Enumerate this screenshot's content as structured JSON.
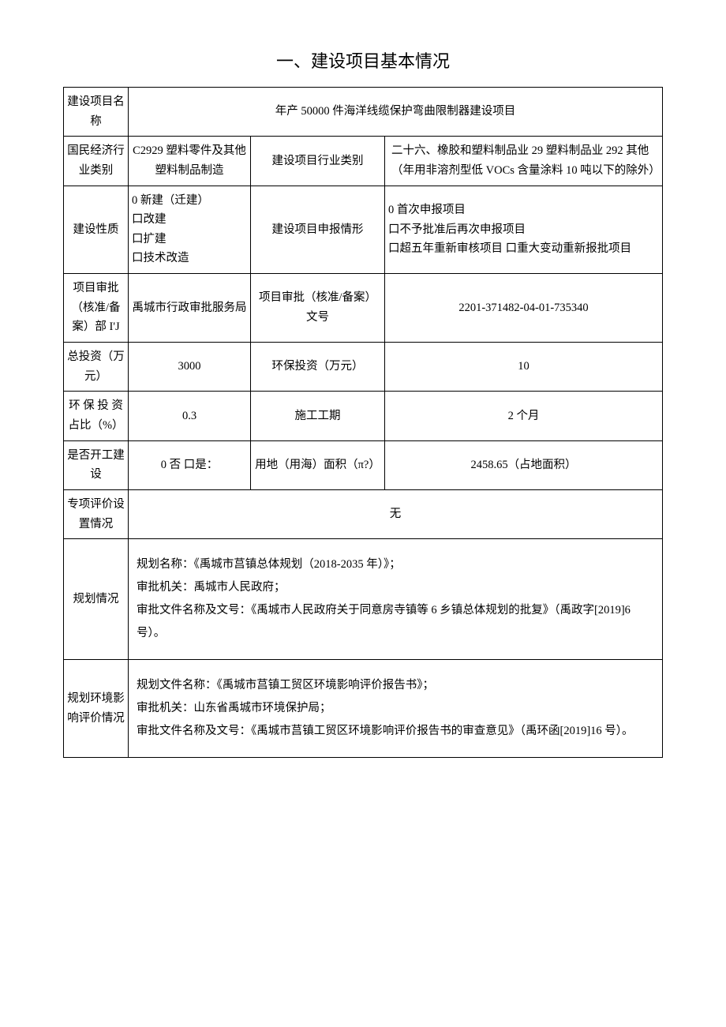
{
  "title": "一、建设项目基本情况",
  "rows": {
    "project_name_label": "建设项目名称",
    "project_name_value": "年产 50000 件海洋线缆保护弯曲限制器建设项目",
    "econ_category_label": "国民经济行业类别",
    "econ_category_value": "C2929 塑料零件及其他塑料制品制造",
    "project_industry_label": "建设项目行业类别",
    "project_industry_value": "二十六、橡胶和塑料制品业 29 塑料制品业 292 其他（年用非溶剂型低 VOCs 含量涂料 10 吨以下的除外）",
    "build_nature_label": "建设性质",
    "build_nature_value": "0 新建（迁建）\n口改建\n口扩建\n口技术改造",
    "report_situation_label": "建设项目申报情形",
    "report_situation_value": "0 首次申报项目\n口不予批准后再次申报项目\n口超五年重新审核项目 口重大变动重新报批项目",
    "approval_dept_label": "项目审批（核准/备案）部 I'J",
    "approval_dept_value": "禹城市行政审批服务局",
    "approval_no_label": "项目审批（核准/备案）文号",
    "approval_no_value": "2201-371482-04-01-735340",
    "total_invest_label": "总投资（万元）",
    "total_invest_value": "3000",
    "env_invest_label": "环保投资（万元）",
    "env_invest_value": "10",
    "env_ratio_label": "环 保 投 资占比（%）",
    "env_ratio_value": "0.3",
    "construction_period_label": "施工工期",
    "construction_period_value": "2 个月",
    "started_label": "是否开工建设",
    "started_value": "0 否 口是：",
    "land_area_label": "用地（用海）面积（π?）",
    "land_area_value": "2458.65（占地面积）",
    "special_eval_label": "专项评价设置情况",
    "special_eval_value": "无",
    "planning_label": "规划情况",
    "planning_value": "规划名称：《禹城市莒镇总体规划（2018-2035 年）》；\n审批机关：禹城市人民政府；\n审批文件名称及文号：《禹城市人民政府关于同意房寺镇等 6 乡镇总体规划的批复》（禹政字[2019]6 号）。",
    "env_eval_label": "规划环境影响评价情况",
    "env_eval_value": "规划文件名称：《禹城市莒镇工贸区环境影响评价报告书》；\n审批机关：山东省禹城市环境保护局；\n审批文件名称及文号：《禹城市莒镇工贸区环境影响评价报告书的审查意见》（禹环函[2019]16 号）。"
  }
}
